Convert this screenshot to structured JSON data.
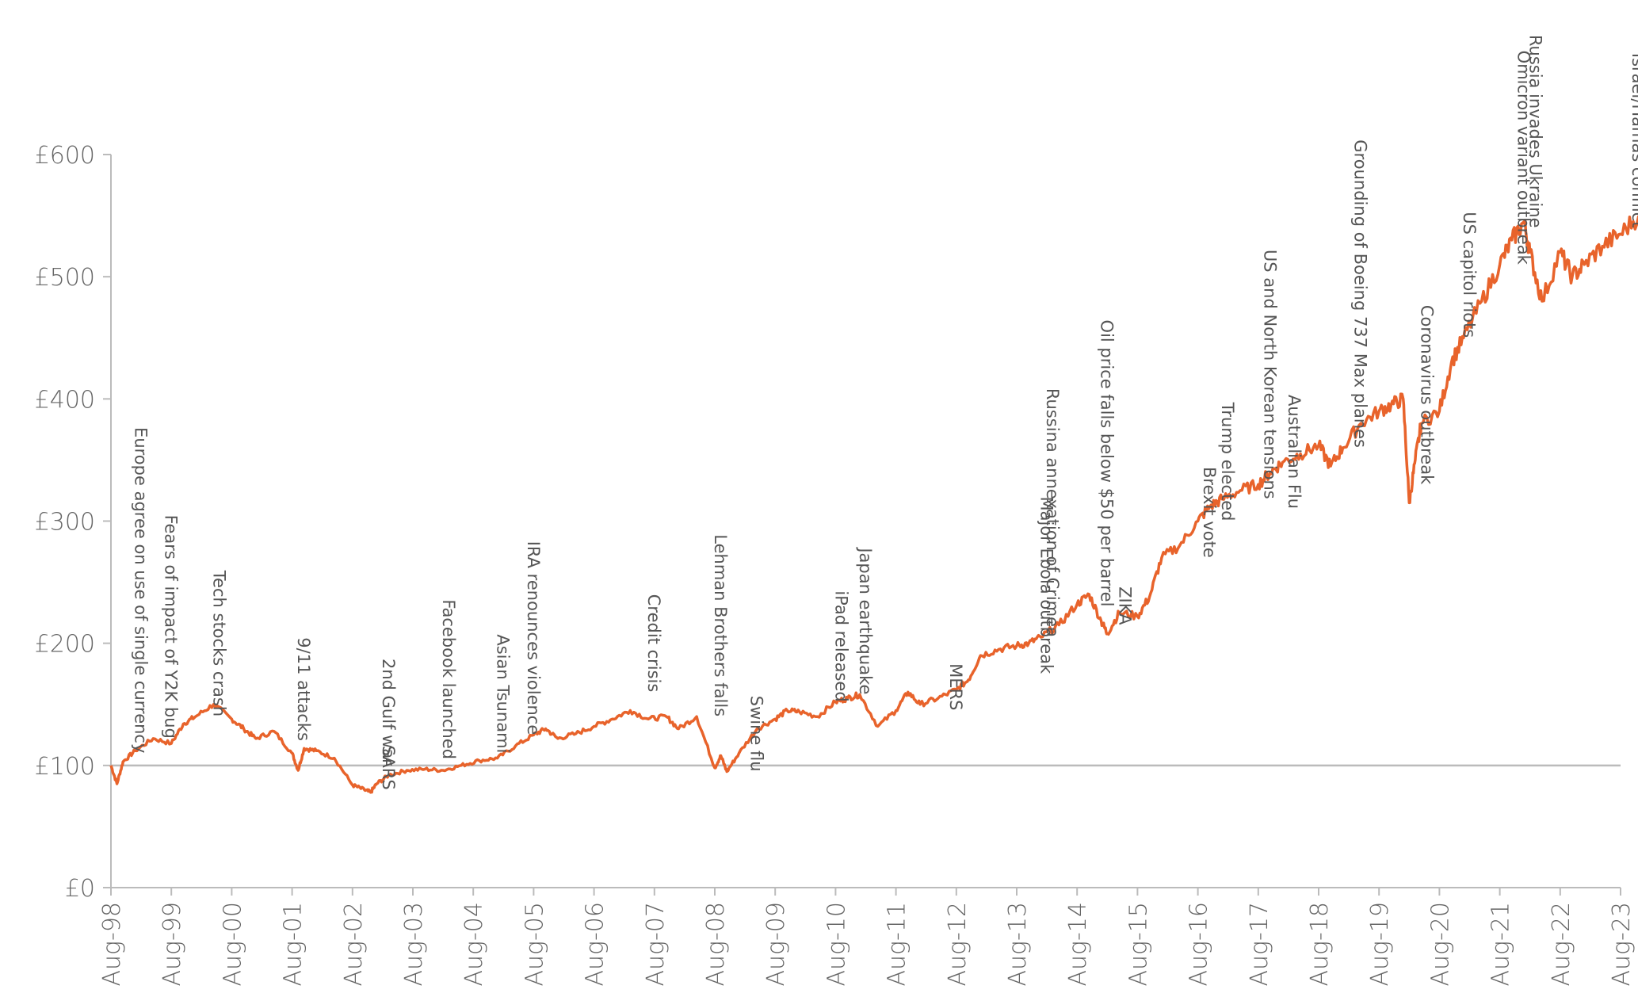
{
  "chart_data": {
    "type": "line",
    "title": "",
    "xlabel": "",
    "ylabel": "",
    "ylim": [
      0,
      600
    ],
    "y_ticks": [
      "£0",
      "£100",
      "£200",
      "£300",
      "£400",
      "£500",
      "£600"
    ],
    "y_tick_values": [
      0,
      100,
      200,
      300,
      400,
      500,
      600
    ],
    "x_ticks": [
      "Aug-98",
      "Aug-99",
      "Aug-00",
      "Aug-01",
      "Aug-02",
      "Aug-03",
      "Aug-04",
      "Aug-05",
      "Aug-06",
      "Aug-07",
      "Aug-08",
      "Aug-09",
      "Aug-10",
      "Aug-11",
      "Aug-12",
      "Aug-13",
      "Aug-14",
      "Aug-15",
      "Aug-16",
      "Aug-17",
      "Aug-18",
      "Aug-19",
      "Aug-20",
      "Aug-21",
      "Aug-22",
      "Aug-23"
    ],
    "grid": false,
    "reference_line": 100,
    "line_color": "#E8632B",
    "axis_color": "#BBBBBB",
    "series": [
      {
        "name": "",
        "x": [
          1998.6,
          1998.7,
          1998.8,
          1999.0,
          1999.3,
          1999.6,
          1999.8,
          2000.0,
          2000.3,
          2000.6,
          2000.8,
          2001.0,
          2001.3,
          2001.6,
          2001.7,
          2001.8,
          2002.0,
          2002.3,
          2002.6,
          2002.8,
          2002.9,
          2003.0,
          2003.2,
          2003.5,
          2003.8,
          2004.1,
          2004.4,
          2004.7,
          2005.0,
          2005.3,
          2005.6,
          2005.8,
          2006.0,
          2006.3,
          2006.6,
          2006.9,
          2007.2,
          2007.5,
          2007.8,
          2008.0,
          2008.3,
          2008.6,
          2008.7,
          2008.8,
          2009.0,
          2009.3,
          2009.6,
          2009.8,
          2010.0,
          2010.3,
          2010.6,
          2010.8,
          2011.0,
          2011.3,
          2011.6,
          2011.8,
          2012.0,
          2012.3,
          2012.6,
          2012.8,
          2013.0,
          2013.3,
          2013.6,
          2013.8,
          2014.0,
          2014.3,
          2014.6,
          2014.8,
          2015.0,
          2015.1,
          2015.3,
          2015.6,
          2015.8,
          2016.0,
          2016.3,
          2016.6,
          2016.8,
          2017.0,
          2017.3,
          2017.6,
          2017.8,
          2018.0,
          2018.3,
          2018.6,
          2018.8,
          2019.0,
          2019.3,
          2019.6,
          2019.8,
          2020.0,
          2020.1,
          2020.2,
          2020.3,
          2020.6,
          2020.8,
          2021.0,
          2021.3,
          2021.6,
          2021.8,
          2022.0,
          2022.1,
          2022.3,
          2022.6,
          2022.8,
          2023.0,
          2023.3,
          2023.6,
          2023.9
        ],
        "values": [
          100,
          85,
          103,
          112,
          122,
          118,
          134,
          140,
          150,
          138,
          130,
          122,
          128,
          110,
          96,
          114,
          112,
          106,
          84,
          80,
          78,
          85,
          92,
          96,
          97,
          96,
          100,
          104,
          106,
          116,
          125,
          130,
          122,
          126,
          132,
          138,
          145,
          138,
          140,
          130,
          140,
          98,
          108,
          95,
          110,
          130,
          138,
          145,
          144,
          140,
          152,
          155,
          158,
          132,
          145,
          160,
          150,
          155,
          162,
          170,
          190,
          195,
          198,
          200,
          205,
          215,
          232,
          240,
          218,
          208,
          225,
          222,
          238,
          270,
          280,
          300,
          312,
          318,
          325,
          330,
          340,
          348,
          355,
          362,
          345,
          360,
          380,
          390,
          395,
          400,
          315,
          350,
          380,
          390,
          430,
          450,
          480,
          510,
          530,
          545,
          520,
          480,
          520,
          500,
          510,
          525,
          535,
          550
        ]
      }
    ],
    "annotations": [
      {
        "text": "Europe agree on use of single currency",
        "x": 1999.0,
        "y": 110
      },
      {
        "text": "Fears of impact of Y2K bug",
        "x": 1999.5,
        "y": 122
      },
      {
        "text": "Tech stocks crash",
        "x": 2000.3,
        "y": 140
      },
      {
        "text": "9/11 attacks",
        "x": 2001.7,
        "y": 120
      },
      {
        "text": "2nd Gulf war",
        "x": 2003.1,
        "y": 100
      },
      {
        "text": "SARS",
        "x": 2003.1,
        "y": 80
      },
      {
        "text": "Facebook launched",
        "x": 2004.1,
        "y": 105
      },
      {
        "text": "Asian Tsunami",
        "x": 2005.0,
        "y": 110
      },
      {
        "text": "IRA renounces violence",
        "x": 2005.5,
        "y": 125
      },
      {
        "text": "Credit crisis",
        "x": 2007.5,
        "y": 160
      },
      {
        "text": "Lehman Brothers falls",
        "x": 2008.6,
        "y": 140
      },
      {
        "text": "Swine flu",
        "x": 2009.2,
        "y": 95
      },
      {
        "text": "iPad released",
        "x": 2010.6,
        "y": 152
      },
      {
        "text": "Japan earthquake",
        "x": 2011.0,
        "y": 158
      },
      {
        "text": "MERS",
        "x": 2012.5,
        "y": 145
      },
      {
        "text": "Major Ebola outbreak",
        "x": 2014.0,
        "y": 175
      },
      {
        "text": "Russina annexation of Crimea",
        "x": 2014.1,
        "y": 205
      },
      {
        "text": "Oil price falls below $50 per barrel",
        "x": 2015.0,
        "y": 230
      },
      {
        "text": "ZIKA",
        "x": 2015.3,
        "y": 215
      },
      {
        "text": "Brexit vote",
        "x": 2016.7,
        "y": 270
      },
      {
        "text": "Trump elected",
        "x": 2017.0,
        "y": 300
      },
      {
        "text": "US and North Korean tensions",
        "x": 2017.7,
        "y": 318
      },
      {
        "text": "Australian Flu",
        "x": 2018.1,
        "y": 310
      },
      {
        "text": "Grounding of Boeing 737 Max planes",
        "x": 2019.2,
        "y": 360
      },
      {
        "text": "Coronavirus outbreak",
        "x": 2020.3,
        "y": 330
      },
      {
        "text": "US capitol riots",
        "x": 2021.0,
        "y": 450
      },
      {
        "text": "Russia invades Ukraine",
        "x": 2022.1,
        "y": 540
      },
      {
        "text": "Omicron variant outbreak",
        "x": 2021.9,
        "y": 510
      },
      {
        "text": "Israel/Hamas conflict",
        "x": 2023.8,
        "y": 540
      }
    ]
  }
}
